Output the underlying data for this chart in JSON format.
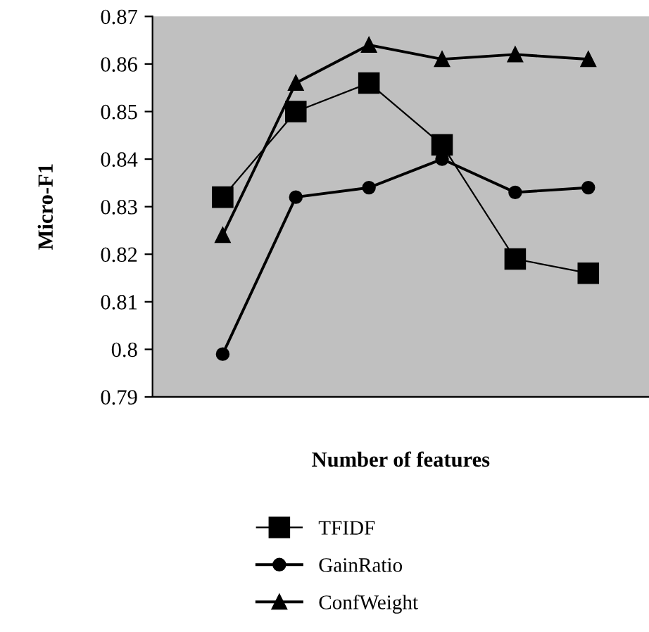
{
  "chart_data": {
    "type": "line",
    "xlabel": "Number of features",
    "ylabel": "Micro-F1",
    "categories": [
      null,
      null,
      null,
      null,
      null,
      null
    ],
    "series": [
      {
        "name": "TFIDF",
        "color": "#000000",
        "marker": "square",
        "values": [
          0.832,
          0.85,
          0.856,
          0.843,
          0.819,
          0.816
        ]
      },
      {
        "name": "GainRatio",
        "color": "#000000",
        "marker": "circle",
        "values": [
          0.799,
          0.832,
          0.834,
          0.84,
          0.833,
          0.834
        ]
      },
      {
        "name": "ConfWeight",
        "color": "#000000",
        "marker": "triangle",
        "values": [
          0.824,
          0.856,
          0.864,
          0.861,
          0.862,
          0.861
        ]
      }
    ],
    "ylim": [
      0.79,
      0.87
    ],
    "yticks": [
      0.79,
      0.8,
      0.81,
      0.82,
      0.83,
      0.84,
      0.85,
      0.86,
      0.87
    ],
    "grid": false,
    "legend": "bottom",
    "line_style": "solid"
  }
}
